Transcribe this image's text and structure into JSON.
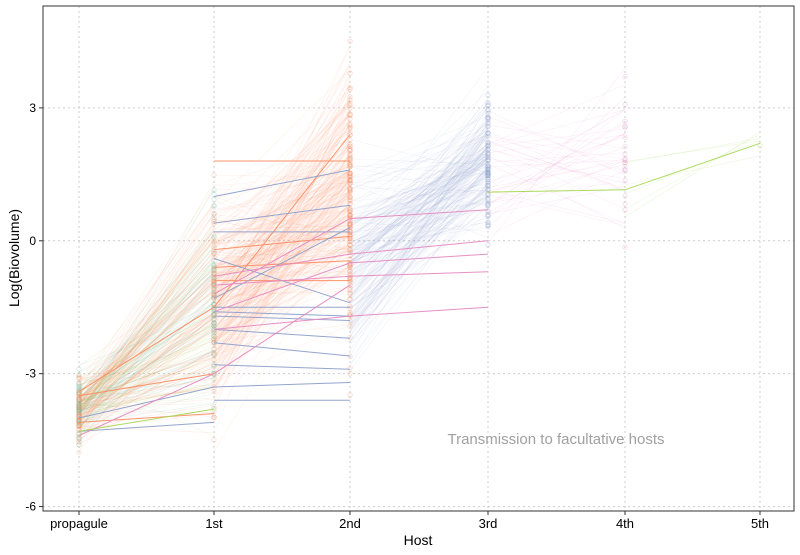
{
  "chart_data": {
    "type": "line",
    "xlabel": "Host",
    "ylabel": "Log(Biovolume)",
    "categories": [
      "propagule",
      "1st",
      "2nd",
      "3rd",
      "4th",
      "5th"
    ],
    "y_ticks": [
      -6,
      -3,
      0,
      3
    ],
    "ylim": [
      -6.1,
      5.3
    ],
    "grid": true,
    "annotation": "Transmission to facultative hosts",
    "colors": {
      "orange": "#fc8d62",
      "blue": "#8da0cb",
      "pink": "#e78ac3",
      "green": "#a6d854",
      "teal": "#66c2a5",
      "annotation": "#a0a0a0",
      "grid": "#cccccc"
    },
    "series": [
      {
        "color": "orange",
        "x": [
          "1st",
          "2nd"
        ],
        "y": [
          1.8,
          1.8
        ]
      },
      {
        "color": "orange",
        "x": [
          "1st",
          "2nd"
        ],
        "y": [
          -0.6,
          -0.45
        ]
      },
      {
        "color": "orange",
        "x": [
          "1st",
          "2nd"
        ],
        "y": [
          -0.9,
          -0.9
        ]
      },
      {
        "color": "orange",
        "x": [
          "1st",
          "2nd"
        ],
        "y": [
          -0.2,
          0.1
        ]
      },
      {
        "color": "orange",
        "x": [
          "propagule",
          "1st"
        ],
        "y": [
          -3.5,
          -3.0
        ]
      },
      {
        "color": "orange",
        "x": [
          "propagule",
          "1st",
          "2nd"
        ],
        "y": [
          -3.4,
          -1.5,
          2.4
        ]
      },
      {
        "color": "orange",
        "x": [
          "propagule",
          "1st"
        ],
        "y": [
          -4.1,
          -3.9
        ]
      },
      {
        "color": "blue",
        "x": [
          "1st",
          "2nd"
        ],
        "y": [
          1.0,
          1.6
        ]
      },
      {
        "color": "blue",
        "x": [
          "1st",
          "2nd"
        ],
        "y": [
          0.4,
          0.8
        ]
      },
      {
        "color": "blue",
        "x": [
          "1st",
          "2nd"
        ],
        "y": [
          0.2,
          0.2
        ]
      },
      {
        "color": "blue",
        "x": [
          "1st",
          "2nd"
        ],
        "y": [
          -1.6,
          -1.7
        ]
      },
      {
        "color": "blue",
        "x": [
          "1st",
          "2nd"
        ],
        "y": [
          -1.7,
          -1.8
        ]
      },
      {
        "color": "blue",
        "x": [
          "1st",
          "2nd"
        ],
        "y": [
          -1.5,
          -1.5
        ]
      },
      {
        "color": "blue",
        "x": [
          "1st",
          "2nd"
        ],
        "y": [
          -2.0,
          -2.2
        ]
      },
      {
        "color": "blue",
        "x": [
          "1st",
          "2nd"
        ],
        "y": [
          -2.3,
          -2.6
        ]
      },
      {
        "color": "blue",
        "x": [
          "1st",
          "2nd"
        ],
        "y": [
          -3.3,
          -3.2
        ]
      },
      {
        "color": "blue",
        "x": [
          "1st",
          "2nd"
        ],
        "y": [
          -3.6,
          -3.6
        ]
      },
      {
        "color": "blue",
        "x": [
          "1st",
          "2nd"
        ],
        "y": [
          -2.8,
          -2.9
        ]
      },
      {
        "color": "blue",
        "x": [
          "1st",
          "2nd"
        ],
        "y": [
          -0.4,
          -1.4
        ]
      },
      {
        "color": "blue",
        "x": [
          "1st",
          "2nd"
        ],
        "y": [
          -1.3,
          0.3
        ]
      },
      {
        "color": "blue",
        "x": [
          "propagule",
          "1st"
        ],
        "y": [
          -4.3,
          -4.1
        ]
      },
      {
        "color": "blue",
        "x": [
          "propagule",
          "1st"
        ],
        "y": [
          -4.0,
          -3.3
        ]
      },
      {
        "color": "pink",
        "x": [
          "1st",
          "2nd",
          "3rd"
        ],
        "y": [
          -1.2,
          0.5,
          0.7
        ]
      },
      {
        "color": "pink",
        "x": [
          "1st",
          "2nd",
          "3rd"
        ],
        "y": [
          -0.8,
          -0.3,
          0.0
        ]
      },
      {
        "color": "pink",
        "x": [
          "1st",
          "2nd",
          "3rd"
        ],
        "y": [
          -1.0,
          -0.8,
          -0.7
        ]
      },
      {
        "color": "pink",
        "x": [
          "1st",
          "2nd",
          "3rd"
        ],
        "y": [
          -2.0,
          -1.7,
          -1.5
        ]
      },
      {
        "color": "pink",
        "x": [
          "1st",
          "2nd",
          "3rd"
        ],
        "y": [
          -1.6,
          -0.5,
          -0.3
        ]
      },
      {
        "color": "pink",
        "x": [
          "propagule",
          "1st",
          "2nd"
        ],
        "y": [
          -4.4,
          -3.0,
          -1.0
        ]
      },
      {
        "color": "green",
        "x": [
          "propagule",
          "1st"
        ],
        "y": [
          -4.3,
          -3.8
        ]
      },
      {
        "color": "green",
        "x": [
          "3rd",
          "4th"
        ],
        "y": [
          1.1,
          1.15
        ]
      },
      {
        "color": "green",
        "x": [
          "4th",
          "5th"
        ],
        "y": [
          1.15,
          2.2
        ]
      }
    ]
  }
}
